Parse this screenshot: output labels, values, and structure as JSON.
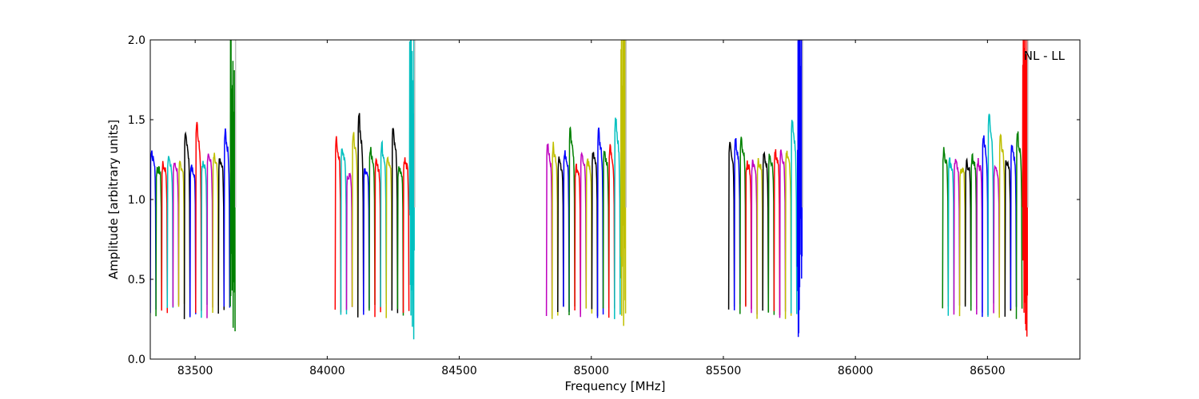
{
  "chart_data": {
    "type": "line",
    "title": "",
    "xlabel": "Frequency [MHz]",
    "ylabel": "Amplitude [arbitrary units]",
    "xlim": [
      83330,
      86850
    ],
    "ylim": [
      0.0,
      2.0
    ],
    "grid": false,
    "annotation": "NL - LL",
    "annotation_position": "top-right",
    "xticks": [
      83500,
      84000,
      84500,
      85000,
      85500,
      86000,
      86500
    ],
    "yticks": [
      0.0,
      0.5,
      1.0,
      1.5,
      2.0
    ],
    "xtick_labels": [
      "83500",
      "84000",
      "84500",
      "85000",
      "85500",
      "86000",
      "86500"
    ],
    "ytick_labels": [
      "0.0",
      "0.5",
      "1.0",
      "1.5",
      "2.0"
    ],
    "colors": [
      "#0000ff",
      "#008000",
      "#ff0000",
      "#00bfbf",
      "#bf00bf",
      "#bfbf00",
      "#000000"
    ],
    "bands": [
      {
        "start": 83330,
        "channels": [
          {
            "color": "#0000ff",
            "peak": 1.31
          },
          {
            "color": "#008000",
            "peak": 1.2
          },
          {
            "color": "#ff0000",
            "peak": 1.22
          },
          {
            "color": "#00bfbf",
            "peak": 1.27
          },
          {
            "color": "#bf00bf",
            "peak": 1.23
          },
          {
            "color": "#bfbf00",
            "peak": 1.23
          },
          {
            "color": "#000000",
            "peak": 1.42
          },
          {
            "color": "#0000ff",
            "peak": 1.2
          },
          {
            "color": "#ff0000",
            "peak": 1.49
          },
          {
            "color": "#00bfbf",
            "peak": 1.23
          },
          {
            "color": "#bf00bf",
            "peak": 1.3
          },
          {
            "color": "#bfbf00",
            "peak": 1.27
          },
          {
            "color": "#000000",
            "peak": 1.25
          },
          {
            "color": "#0000ff",
            "peak": 1.44
          }
        ],
        "edge_color": "#008000"
      },
      {
        "start": 84030,
        "channels": [
          {
            "color": "#ff0000",
            "peak": 1.38
          },
          {
            "color": "#00bfbf",
            "peak": 1.32
          },
          {
            "color": "#bf00bf",
            "peak": 1.14
          },
          {
            "color": "#bfbf00",
            "peak": 1.42
          },
          {
            "color": "#000000",
            "peak": 1.52
          },
          {
            "color": "#0000ff",
            "peak": 1.19
          },
          {
            "color": "#008000",
            "peak": 1.33
          },
          {
            "color": "#ff0000",
            "peak": 1.23
          },
          {
            "color": "#00bfbf",
            "peak": 1.35
          },
          {
            "color": "#bfbf00",
            "peak": 1.28
          },
          {
            "color": "#000000",
            "peak": 1.45
          },
          {
            "color": "#008000",
            "peak": 1.2
          },
          {
            "color": "#ff0000",
            "peak": 1.25
          }
        ],
        "edge_color": "#00bfbf"
      },
      {
        "start": 84830,
        "channels": [
          {
            "color": "#bf00bf",
            "peak": 1.34
          },
          {
            "color": "#bfbf00",
            "peak": 1.34
          },
          {
            "color": "#000000",
            "peak": 1.25
          },
          {
            "color": "#0000ff",
            "peak": 1.3
          },
          {
            "color": "#008000",
            "peak": 1.44
          },
          {
            "color": "#ff0000",
            "peak": 1.2
          },
          {
            "color": "#bf00bf",
            "peak": 1.3
          },
          {
            "color": "#bfbf00",
            "peak": 1.25
          },
          {
            "color": "#000000",
            "peak": 1.29
          },
          {
            "color": "#0000ff",
            "peak": 1.43
          },
          {
            "color": "#008000",
            "peak": 1.3
          },
          {
            "color": "#ff0000",
            "peak": 1.33
          },
          {
            "color": "#00bfbf",
            "peak": 1.51
          }
        ],
        "edge_color": "#bfbf00"
      },
      {
        "start": 85520,
        "channels": [
          {
            "color": "#000000",
            "peak": 1.36
          },
          {
            "color": "#0000ff",
            "peak": 1.37
          },
          {
            "color": "#008000",
            "peak": 1.39
          },
          {
            "color": "#ff0000",
            "peak": 1.23
          },
          {
            "color": "#bf00bf",
            "peak": 1.24
          },
          {
            "color": "#bfbf00",
            "peak": 1.24
          },
          {
            "color": "#000000",
            "peak": 1.28
          },
          {
            "color": "#008000",
            "peak": 1.28
          },
          {
            "color": "#ff0000",
            "peak": 1.31
          },
          {
            "color": "#bf00bf",
            "peak": 1.3
          },
          {
            "color": "#bfbf00",
            "peak": 1.29
          },
          {
            "color": "#00bfbf",
            "peak": 1.51
          }
        ],
        "edge_color": "#0000ff"
      },
      {
        "start": 86330,
        "channels": [
          {
            "color": "#008000",
            "peak": 1.31
          },
          {
            "color": "#00bfbf",
            "peak": 1.24
          },
          {
            "color": "#bf00bf",
            "peak": 1.25
          },
          {
            "color": "#bfbf00",
            "peak": 1.2
          },
          {
            "color": "#000000",
            "peak": 1.23
          },
          {
            "color": "#008000",
            "peak": 1.27
          },
          {
            "color": "#bf00bf",
            "peak": 1.24
          },
          {
            "color": "#0000ff",
            "peak": 1.41
          },
          {
            "color": "#00bfbf",
            "peak": 1.54
          },
          {
            "color": "#bf00bf",
            "peak": 1.2
          },
          {
            "color": "#bfbf00",
            "peak": 1.4
          },
          {
            "color": "#000000",
            "peak": 1.24
          },
          {
            "color": "#0000ff",
            "peak": 1.34
          },
          {
            "color": "#008000",
            "peak": 1.42
          }
        ],
        "edge_color": "#ff0000"
      }
    ]
  }
}
